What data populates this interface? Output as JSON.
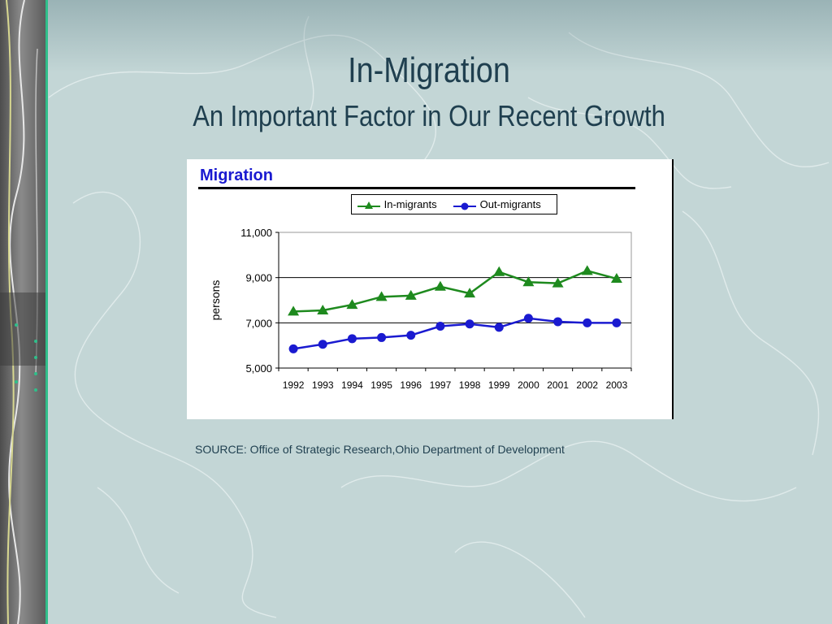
{
  "slide": {
    "title": "In-Migration",
    "subtitle": "An Important Factor in Our Recent Growth",
    "source": "SOURCE: Office of Strategic Research,Ohio Department of Development"
  },
  "colors": {
    "background": "#c3d6d6",
    "title": "#1f3f4f",
    "in_migrants": "#1e8a1e",
    "out_migrants": "#1a1ad0",
    "chart_heading": "#1a1ad0"
  },
  "chart_data": {
    "type": "line",
    "title": "Migration",
    "xlabel": "",
    "ylabel": "persons",
    "categories": [
      "1992",
      "1993",
      "1994",
      "1995",
      "1996",
      "1997",
      "1998",
      "1999",
      "2000",
      "2001",
      "2002",
      "2003"
    ],
    "series": [
      {
        "name": "In-migrants",
        "marker": "triangle",
        "color": "#1e8a1e",
        "values": [
          7500,
          7550,
          7800,
          8150,
          8200,
          8600,
          8300,
          9250,
          8800,
          8750,
          9300,
          8950
        ]
      },
      {
        "name": "Out-migrants",
        "marker": "circle",
        "color": "#1a1ad0",
        "values": [
          5850,
          6050,
          6300,
          6350,
          6450,
          6850,
          6950,
          6800,
          7200,
          7050,
          7000,
          7000
        ]
      }
    ],
    "ylim": [
      5000,
      11000
    ],
    "yticks": [
      5000,
      7000,
      9000,
      11000
    ],
    "ytick_labels": [
      "5,000",
      "7,000",
      "9,000",
      "11,000"
    ],
    "grid": "horizontal",
    "legend": "top-center"
  }
}
